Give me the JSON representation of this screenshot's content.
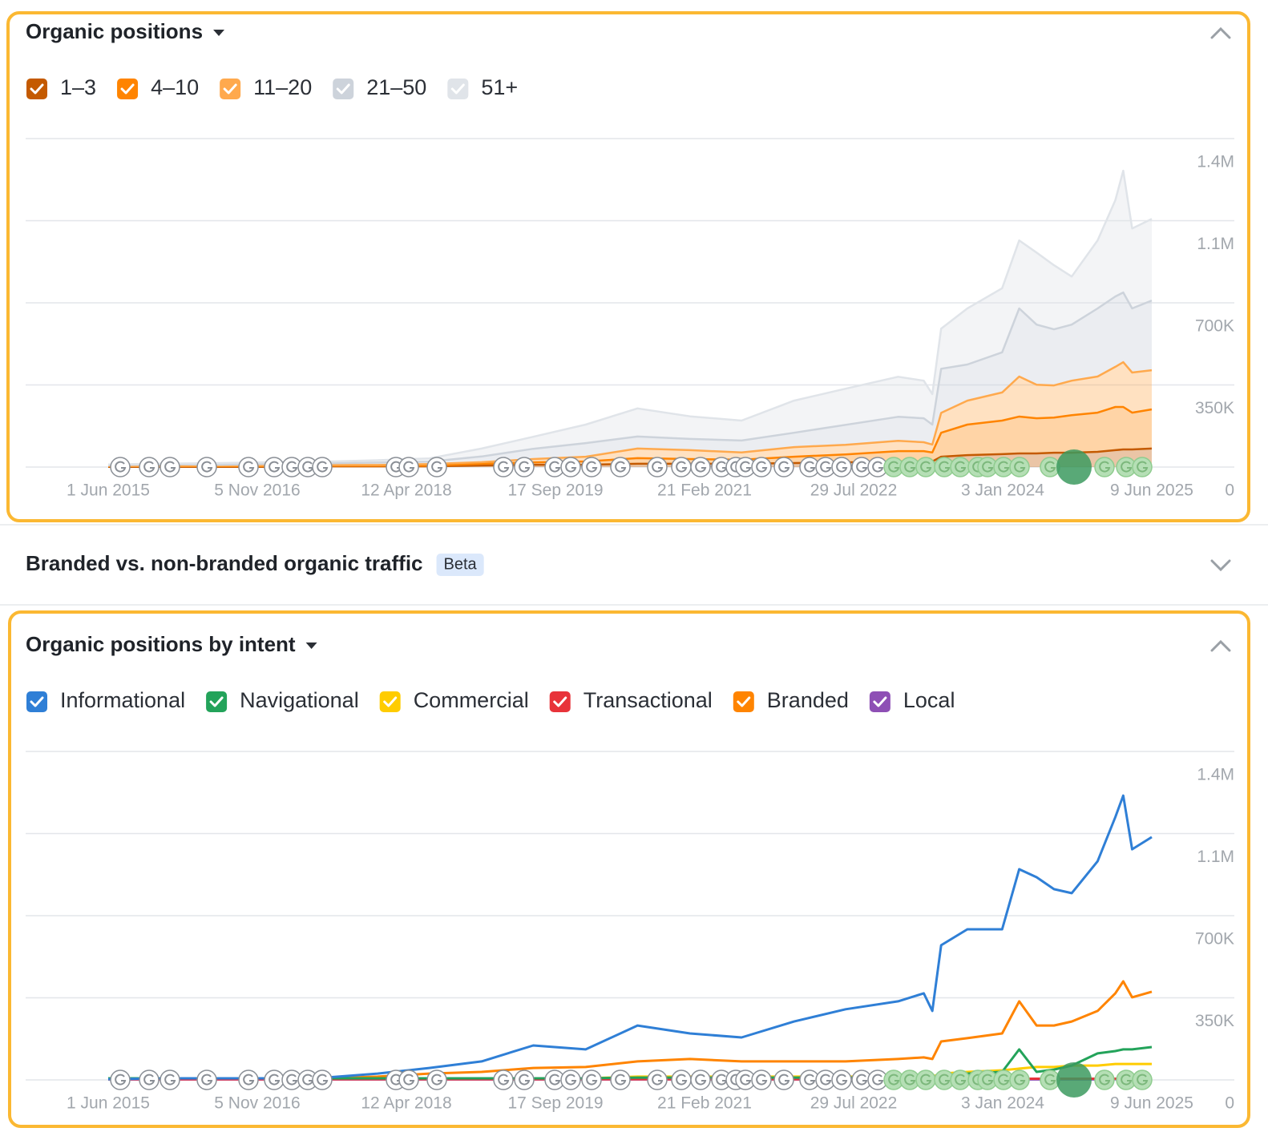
{
  "chart_data": [
    {
      "type": "area",
      "stacked": true,
      "title": "Organic positions",
      "x": [
        "1 Jun 2015",
        "1 Jan 2016",
        "1 Jul 2016",
        "1 Jan 2017",
        "1 Jul 2017",
        "1 Jan 2018",
        "1 Jul 2018",
        "1 Jan 2019",
        "1 Jul 2019",
        "1 Jan 2020",
        "1 Jul 2020",
        "1 Jan 2021",
        "1 Jul 2021",
        "1 Jan 2022",
        "1 Jul 2022",
        "1 Jan 2023",
        "1 Apr 2023",
        "1 May 2023",
        "1 Jun 2023",
        "1 Sep 2023",
        "1 Jan 2024",
        "1 Mar 2024",
        "1 May 2024",
        "1 Jul 2024",
        "1 Sep 2024",
        "1 Dec 2024",
        "1 Feb 2025",
        "1 Mar 2025",
        "1 Apr 2025",
        "9 Jun 2025"
      ],
      "series": [
        {
          "name": "1–3",
          "color": "#c45a00",
          "values": [
            1000,
            1000,
            1000,
            1000,
            3000,
            3000,
            3000,
            7000,
            10000,
            10000,
            14000,
            14000,
            14000,
            17000,
            20000,
            24000,
            24000,
            24000,
            44000,
            51000,
            55000,
            58000,
            58000,
            61000,
            61000,
            65000,
            72000,
            75000,
            75000,
            79000
          ]
        },
        {
          "name": "4–10",
          "color": "#ff8400",
          "values": [
            3000,
            3000,
            3000,
            3000,
            3000,
            3000,
            3000,
            7000,
            10000,
            14000,
            24000,
            20000,
            17000,
            27000,
            34000,
            44000,
            44000,
            38000,
            102000,
            130000,
            143000,
            157000,
            150000,
            150000,
            160000,
            167000,
            184000,
            181000,
            157000,
            167000
          ]
        },
        {
          "name": "11–20",
          "color": "#ffa94d",
          "values": [
            1000,
            1000,
            3000,
            3000,
            3000,
            3000,
            7000,
            7000,
            14000,
            20000,
            41000,
            38000,
            31000,
            41000,
            41000,
            44000,
            38000,
            34000,
            85000,
            102000,
            120000,
            171000,
            143000,
            137000,
            147000,
            154000,
            171000,
            191000,
            171000,
            167000
          ]
        },
        {
          "name": "21–50",
          "color": "#cdd3db",
          "values": [
            3000,
            7000,
            3000,
            7000,
            7000,
            10000,
            10000,
            24000,
            44000,
            58000,
            51000,
            48000,
            51000,
            61000,
            85000,
            102000,
            102000,
            85000,
            188000,
            154000,
            171000,
            290000,
            256000,
            239000,
            239000,
            290000,
            300000,
            297000,
            273000,
            297000
          ]
        },
        {
          "name": "51+",
          "color": "#e0e4e9",
          "values": [
            3000,
            3000,
            7000,
            7000,
            7000,
            10000,
            14000,
            34000,
            51000,
            79000,
            120000,
            96000,
            85000,
            137000,
            154000,
            171000,
            160000,
            130000,
            171000,
            239000,
            273000,
            290000,
            307000,
            273000,
            205000,
            290000,
            410000,
            519000,
            341000,
            348000
          ]
        }
      ],
      "xlim": [
        "1 Jun 2015",
        "9 Jun 2025"
      ],
      "xticks": [
        "1 Jun 2015",
        "5 Nov 2016",
        "12 Apr 2018",
        "17 Sep 2019",
        "21 Feb 2021",
        "29 Jul 2022",
        "3 Jan 2024",
        "9 Jun 2025"
      ],
      "ylim": [
        0,
        1400000
      ],
      "yticks": [
        0,
        {
          "value": 350000,
          "label": "350K"
        },
        {
          "value": 700000,
          "label": "700K"
        },
        {
          "value": 1050000,
          "label": "1.1M"
        },
        {
          "value": 1400000,
          "label": "1.4M"
        }
      ],
      "grid": true,
      "y_axis_side": "right"
    },
    {
      "type": "line",
      "stacked": false,
      "title": "Organic positions by intent",
      "x": [
        "1 Jun 2015",
        "1 Jan 2016",
        "1 Jul 2016",
        "1 Jan 2017",
        "1 Jul 2017",
        "1 Jan 2018",
        "1 Jul 2018",
        "1 Jan 2019",
        "1 Jul 2019",
        "1 Jan 2020",
        "1 Jul 2020",
        "1 Jan 2021",
        "1 Jul 2021",
        "1 Jan 2022",
        "1 Jul 2022",
        "1 Jan 2023",
        "1 Apr 2023",
        "1 May 2023",
        "1 Jun 2023",
        "1 Sep 2023",
        "1 Jan 2024",
        "1 Mar 2024",
        "1 May 2024",
        "1 Jul 2024",
        "1 Sep 2024",
        "1 Dec 2024",
        "1 Feb 2025",
        "1 Mar 2025",
        "1 Apr 2025",
        "9 Jun 2025"
      ],
      "series": [
        {
          "name": "Informational",
          "color": "#2f7fd6",
          "values": [
            3000,
            7000,
            7000,
            7000,
            10000,
            27000,
            51000,
            79000,
            147000,
            130000,
            232000,
            198000,
            181000,
            249000,
            301000,
            335000,
            369000,
            294000,
            574000,
            642000,
            642000,
            898000,
            864000,
            813000,
            796000,
            932000,
            1120000,
            1212000,
            983000,
            1035000
          ]
        },
        {
          "name": "Navigational",
          "color": "#23a35a",
          "values": [
            7000,
            7000,
            7000,
            7000,
            7000,
            7000,
            7000,
            7000,
            7000,
            7000,
            10000,
            10000,
            10000,
            10000,
            10000,
            10000,
            10000,
            10000,
            17000,
            27000,
            34000,
            130000,
            34000,
            44000,
            61000,
            113000,
            123000,
            130000,
            130000,
            140000
          ]
        },
        {
          "name": "Commercial",
          "color": "#ffcc00",
          "values": [
            7000,
            7000,
            7000,
            7000,
            7000,
            7000,
            7000,
            7000,
            7000,
            7000,
            14000,
            14000,
            14000,
            14000,
            14000,
            14000,
            14000,
            14000,
            27000,
            34000,
            41000,
            48000,
            55000,
            55000,
            61000,
            61000,
            68000,
            68000,
            68000,
            68000
          ]
        },
        {
          "name": "Transactional",
          "color": "#e8333a",
          "values": [
            3000,
            3000,
            3000,
            3000,
            3000,
            3000,
            3000,
            3000,
            3000,
            3000,
            3000,
            3000,
            3000,
            3000,
            3000,
            3000,
            3000,
            3000,
            5000,
            5000,
            5000,
            5000,
            5000,
            5000,
            5000,
            5000,
            5000,
            5000,
            5000,
            5000
          ]
        },
        {
          "name": "Branded",
          "color": "#ff8400",
          "values": [
            3000,
            7000,
            7000,
            7000,
            7000,
            14000,
            27000,
            34000,
            51000,
            55000,
            79000,
            89000,
            79000,
            79000,
            79000,
            89000,
            96000,
            89000,
            164000,
            178000,
            198000,
            335000,
            232000,
            232000,
            249000,
            294000,
            369000,
            420000,
            352000,
            376000
          ]
        },
        {
          "name": "Local",
          "color": "#8e4fb5",
          "values": [
            2000,
            2000,
            2000,
            2000,
            2000,
            2000,
            2000,
            2000,
            2000,
            2000,
            2000,
            2000,
            2000,
            2000,
            2000,
            2000,
            2000,
            2000,
            2000,
            2000,
            2000,
            2000,
            2000,
            2000,
            2000,
            2000,
            3000,
            3000,
            3000,
            3000
          ]
        }
      ],
      "xlim": [
        "1 Jun 2015",
        "9 Jun 2025"
      ],
      "xticks": [
        "1 Jun 2015",
        "5 Nov 2016",
        "12 Apr 2018",
        "17 Sep 2019",
        "21 Feb 2021",
        "29 Jul 2022",
        "3 Jan 2024",
        "9 Jun 2025"
      ],
      "ylim": [
        0,
        1400000
      ],
      "yticks": [
        0,
        {
          "value": 350000,
          "label": "350K"
        },
        {
          "value": 700000,
          "label": "700K"
        },
        {
          "value": 1050000,
          "label": "1.1M"
        },
        {
          "value": 1400000,
          "label": "1.4M"
        }
      ],
      "grid": true,
      "y_axis_side": "right"
    }
  ],
  "collapsed_section": {
    "title": "Branded vs. non-branded organic traffic",
    "badge": "Beta"
  }
}
